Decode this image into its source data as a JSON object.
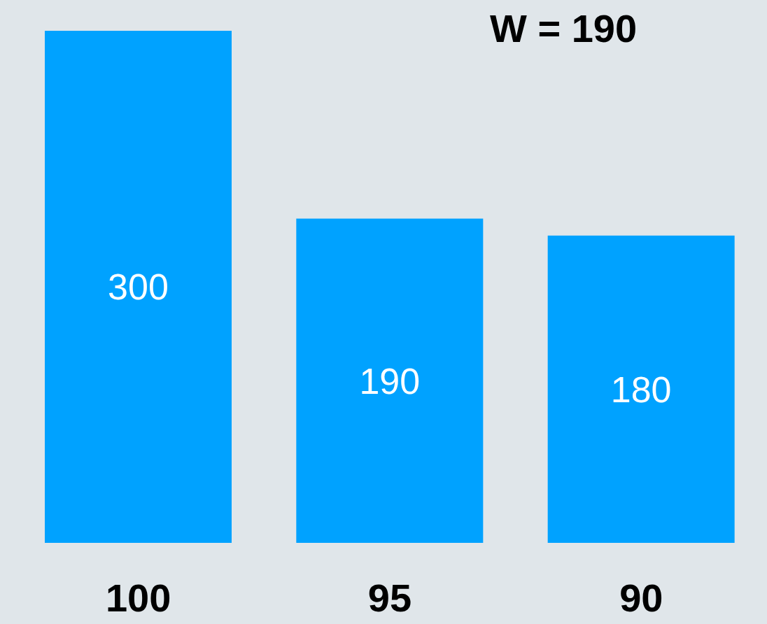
{
  "chart_data": {
    "type": "bar",
    "categories": [
      "100",
      "95",
      "90"
    ],
    "values": [
      300,
      190,
      180
    ],
    "data_labels": true,
    "color": "#00a2ff",
    "annotations": [
      "W = 190"
    ],
    "grid": false,
    "legend": false
  }
}
